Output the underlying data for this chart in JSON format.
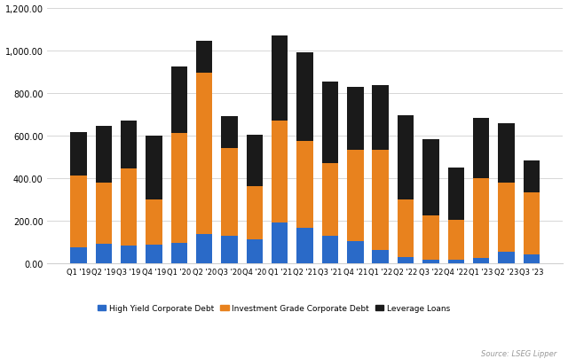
{
  "categories": [
    "Q1 '19",
    "Q2 '19",
    "Q3 '19",
    "Q4 '19",
    "Q1 '20",
    "Q2 '20",
    "Q3 '20",
    "Q4 '20",
    "Q1 '21",
    "Q2 '21",
    "Q3 '21",
    "Q4 '21",
    "Q1 '22",
    "Q2 '22",
    "Q3 '22",
    "Q4 '22",
    "Q1 '23",
    "Q2 '23",
    "Q3 '23"
  ],
  "high_yield": [
    75,
    95,
    85,
    90,
    97,
    140,
    130,
    115,
    195,
    170,
    130,
    105,
    65,
    30,
    20,
    20,
    25,
    55,
    45
  ],
  "inv_grade": [
    340,
    285,
    360,
    210,
    515,
    755,
    410,
    250,
    475,
    405,
    340,
    430,
    470,
    270,
    205,
    185,
    375,
    325,
    290
  ],
  "lev_loans": [
    200,
    265,
    225,
    300,
    310,
    150,
    150,
    240,
    400,
    415,
    385,
    295,
    300,
    395,
    360,
    245,
    285,
    280,
    150
  ],
  "colors": {
    "high_yield": "#2a6ac8",
    "inv_grade": "#e8821e",
    "lev_loans": "#1a1a1a"
  },
  "ylim": [
    0,
    1200
  ],
  "yticks": [
    0,
    200,
    400,
    600,
    800,
    1000,
    1200
  ],
  "source": "Source: LSEG Lipper",
  "legend_labels": [
    "High Yield Corporate Debt",
    "Investment Grade Corporate Debt",
    "Leverage Loans"
  ],
  "bg_color": "#ffffff",
  "grid_color": "#d0d0d0"
}
